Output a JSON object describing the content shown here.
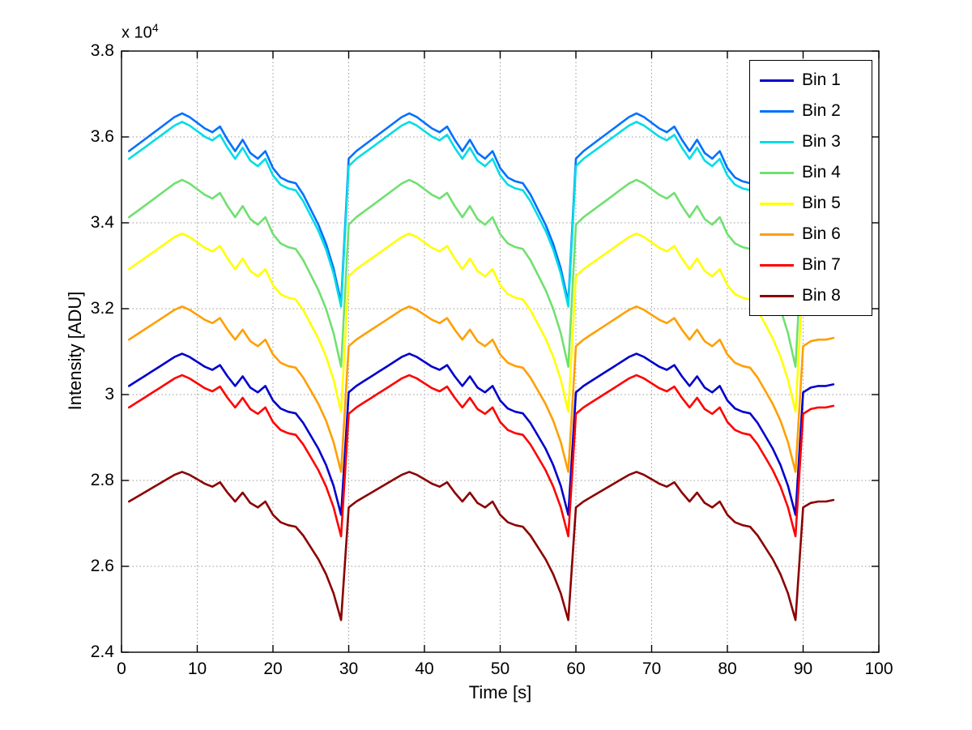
{
  "figure": {
    "xlabel": "Time [s]",
    "ylabel": "Intensity [ADU]",
    "y_scale_label": "x 10",
    "y_scale_exponent": "4"
  },
  "chart_data": {
    "type": "line",
    "title": "",
    "xlabel": "Time [s]",
    "ylabel": "Intensity [ADU]",
    "y_axis_multiplier": "x 10^4",
    "xlim": [
      0,
      100
    ],
    "ylim": [
      24000,
      38000
    ],
    "xticks": [
      0,
      10,
      20,
      30,
      40,
      50,
      60,
      70,
      80,
      90,
      100
    ],
    "xtick_labels": [
      "0",
      "10",
      "20",
      "30",
      "40",
      "50",
      "60",
      "70",
      "80",
      "90",
      "100"
    ],
    "yticks": [
      24000,
      26000,
      28000,
      30000,
      32000,
      34000,
      36000,
      38000
    ],
    "ytick_labels": [
      "2.4",
      "2.6",
      "2.8",
      "3",
      "3.2",
      "3.4",
      "3.6",
      "3.8"
    ],
    "grid": true,
    "legend_position": "top-right",
    "note": "All 8 series share the same periodic sawtooth profile (period 30 s, sharp upward jump at t=30,60,90). value[i] = min + (max - min) * shape[i].",
    "x": [
      1,
      2,
      3,
      4,
      5,
      6,
      7,
      8,
      9,
      10,
      11,
      12,
      13,
      14,
      15,
      16,
      17,
      18,
      19,
      20,
      21,
      22,
      23,
      24,
      25,
      26,
      27,
      28,
      29,
      30,
      31,
      32,
      33,
      34,
      35,
      36,
      37,
      38,
      39,
      40,
      41,
      42,
      43,
      44,
      45,
      46,
      47,
      48,
      49,
      50,
      51,
      52,
      53,
      54,
      55,
      56,
      57,
      58,
      59,
      60,
      61,
      62,
      63,
      64,
      65,
      66,
      67,
      68,
      69,
      70,
      71,
      72,
      73,
      74,
      75,
      76,
      77,
      78,
      79,
      80,
      81,
      82,
      83,
      84,
      85,
      86,
      87,
      88,
      89,
      90,
      91,
      92,
      93,
      94
    ],
    "shape": [
      0.8,
      0.83,
      0.86,
      0.89,
      0.92,
      0.95,
      0.98,
      1.0,
      0.98,
      0.95,
      0.92,
      0.9,
      0.93,
      0.86,
      0.8,
      0.86,
      0.79,
      0.76,
      0.8,
      0.71,
      0.66,
      0.64,
      0.63,
      0.57,
      0.49,
      0.41,
      0.31,
      0.18,
      0.0,
      0.76,
      0.8,
      0.83,
      0.86,
      0.89,
      0.92,
      0.95,
      0.98,
      1.0,
      0.98,
      0.95,
      0.92,
      0.9,
      0.93,
      0.86,
      0.8,
      0.86,
      0.79,
      0.76,
      0.8,
      0.71,
      0.66,
      0.64,
      0.63,
      0.57,
      0.49,
      0.41,
      0.31,
      0.18,
      0.0,
      0.76,
      0.8,
      0.83,
      0.86,
      0.89,
      0.92,
      0.95,
      0.98,
      1.0,
      0.98,
      0.95,
      0.92,
      0.9,
      0.93,
      0.86,
      0.8,
      0.86,
      0.79,
      0.76,
      0.8,
      0.71,
      0.66,
      0.64,
      0.63,
      0.57,
      0.49,
      0.41,
      0.31,
      0.18,
      0.0,
      0.76,
      0.79,
      0.8,
      0.8,
      0.81
    ],
    "series": [
      {
        "name": "Bin 1",
        "color": "#0000CC",
        "min": 27200,
        "max": 30950
      },
      {
        "name": "Bin 2",
        "color": "#0070FF",
        "min": 32150,
        "max": 36550
      },
      {
        "name": "Bin 3",
        "color": "#00DCE6",
        "min": 32050,
        "max": 36350
      },
      {
        "name": "Bin 4",
        "color": "#70E070",
        "min": 30650,
        "max": 35000
      },
      {
        "name": "Bin 5",
        "color": "#FFFF00",
        "min": 29600,
        "max": 33750
      },
      {
        "name": "Bin 6",
        "color": "#FF9F00",
        "min": 28200,
        "max": 32050
      },
      {
        "name": "Bin 7",
        "color": "#FF0000",
        "min": 26700,
        "max": 30450
      },
      {
        "name": "Bin 8",
        "color": "#8B0000",
        "min": 24750,
        "max": 28200
      }
    ]
  }
}
